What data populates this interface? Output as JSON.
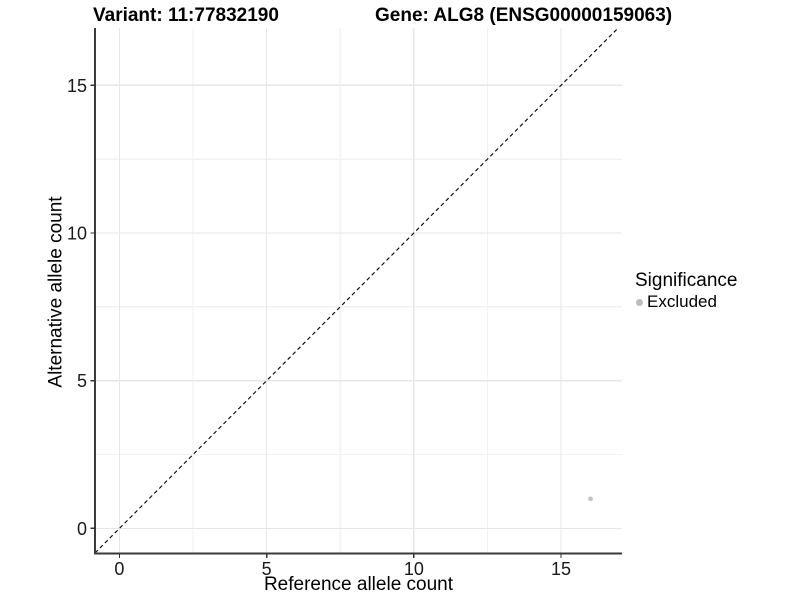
{
  "chart_data": {
    "type": "scatter",
    "title_left": "Variant: 11:77832190",
    "title_right": "Gene: ALG8 (ENSG00000159063)",
    "xlabel": "Reference allele count",
    "ylabel": "Alternative allele count",
    "x_range": [
      -0.83,
      17.07
    ],
    "y_range": [
      -0.85,
      16.94
    ],
    "x_ticks": [
      0,
      5,
      10,
      15
    ],
    "y_ticks": [
      0,
      5,
      10,
      15
    ],
    "x_minor_ticks": [
      2.5,
      7.5,
      12.5
    ],
    "y_minor_ticks": [
      2.5,
      7.5,
      12.5
    ],
    "grid": "major+minor",
    "series": [
      {
        "name": "Excluded",
        "color": "#c3c3c3",
        "points": [
          {
            "x": 16,
            "y": 1
          }
        ]
      }
    ],
    "reference_line": {
      "kind": "identity y=x",
      "style": "dashed",
      "color": "#000000"
    },
    "legend": {
      "title": "Significance",
      "position": "right",
      "items": [
        {
          "label": "Excluded",
          "color": "#bdbdbd"
        }
      ]
    }
  },
  "colors": {
    "background": "#ffffff",
    "grid_major": "#e7e7e7",
    "grid_minor": "#f2f2f2",
    "axis_line": "#3b3b3b",
    "tick_mark": "#333333",
    "tick_label": "#1a1a1a",
    "excluded_point": "#c3c3c3"
  }
}
